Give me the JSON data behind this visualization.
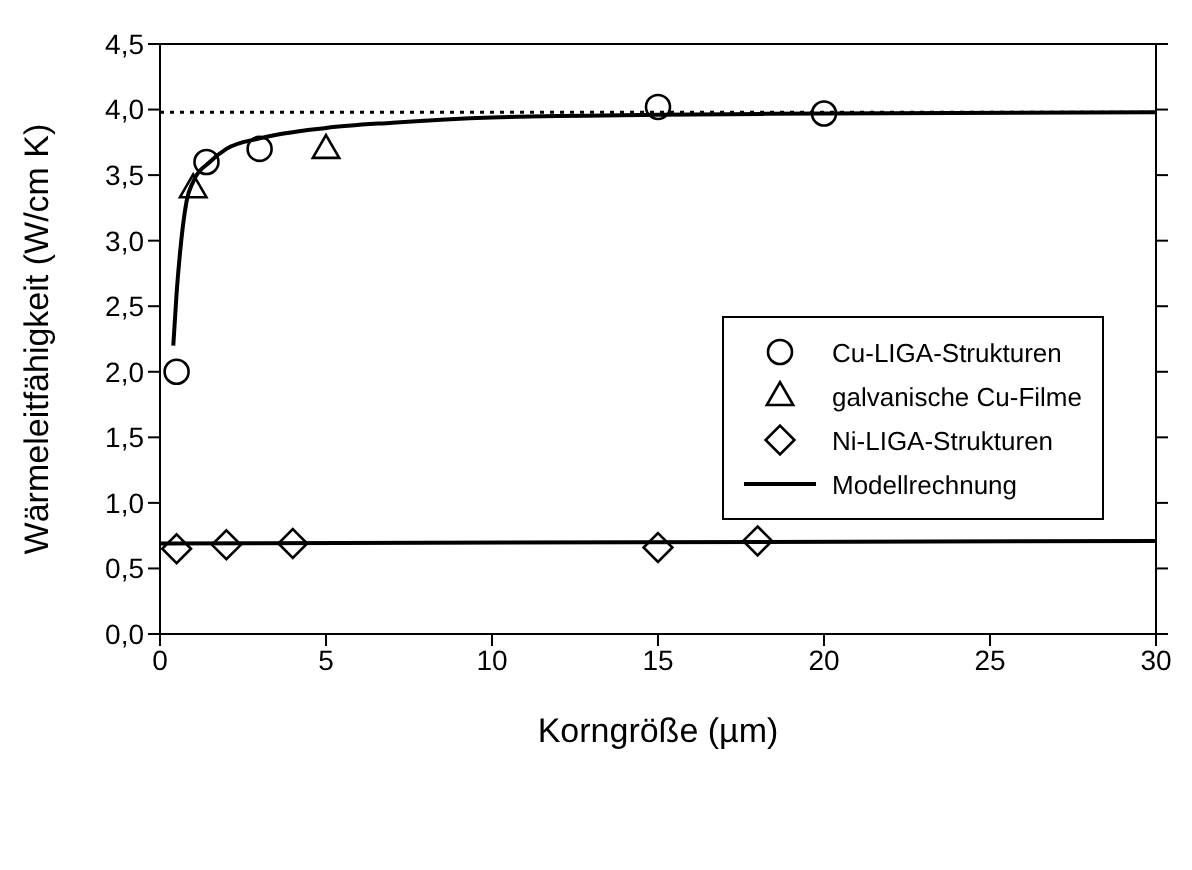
{
  "chart_data": {
    "type": "scatter",
    "xlabel": "Korngröße (µm)",
    "ylabel": "Wärmeleitfähigkeit (W/cm K)",
    "xlim": [
      0,
      30
    ],
    "xticks": [
      0,
      5,
      10,
      15,
      20,
      25,
      30
    ],
    "ylim": [
      0,
      4.5
    ],
    "yticks": [
      {
        "value": 0,
        "label": "0,0"
      },
      {
        "value": 0.5,
        "label": "0,5"
      },
      {
        "value": 1,
        "label": "1,0"
      },
      {
        "value": 1.5,
        "label": "1,5"
      },
      {
        "value": 2,
        "label": "2,0"
      },
      {
        "value": 2.5,
        "label": "2,5"
      },
      {
        "value": 3,
        "label": "3,0"
      },
      {
        "value": 3.5,
        "label": "3,5"
      },
      {
        "value": 4,
        "label": "4,0"
      },
      {
        "value": 4.5,
        "label": "4,5"
      }
    ],
    "grid": false,
    "legend": "right",
    "series": [
      {
        "name": "Cu-LIGA-Strukturen",
        "marker": "circle",
        "color": "#000000",
        "x": [
          0.5,
          1.4,
          3,
          15,
          20
        ],
        "values": [
          2.0,
          3.6,
          3.7,
          4.02,
          3.97
        ]
      },
      {
        "name": "galvanische Cu-Filme",
        "marker": "triangle",
        "color": "#000000",
        "x": [
          1.0,
          5
        ],
        "values": [
          3.4,
          3.7
        ]
      },
      {
        "name": "Ni-LIGA-Strukturen",
        "marker": "diamond",
        "color": "#000000",
        "x": [
          0.5,
          2,
          4,
          15,
          18
        ],
        "values": [
          0.65,
          0.68,
          0.69,
          0.66,
          0.71
        ]
      },
      {
        "name": "Modellrechnung",
        "type": "line",
        "marker": "none",
        "color": "#000000",
        "x": [
          0.4,
          0.5,
          0.6,
          0.8,
          1,
          1.5,
          2,
          3,
          5,
          7,
          10,
          15,
          20,
          30
        ],
        "values": [
          2.2,
          2.6,
          2.9,
          3.3,
          3.45,
          3.6,
          3.7,
          3.78,
          3.86,
          3.9,
          3.94,
          3.96,
          3.97,
          3.98
        ]
      },
      {
        "type": "line",
        "marker": "none",
        "color": "#000000",
        "x": [
          0,
          30
        ],
        "values": [
          0.69,
          0.71
        ]
      }
    ],
    "ref_lines": [
      {
        "axis": "y",
        "value": 3.98,
        "line_style": "dotted",
        "color": "#000000"
      }
    ]
  }
}
